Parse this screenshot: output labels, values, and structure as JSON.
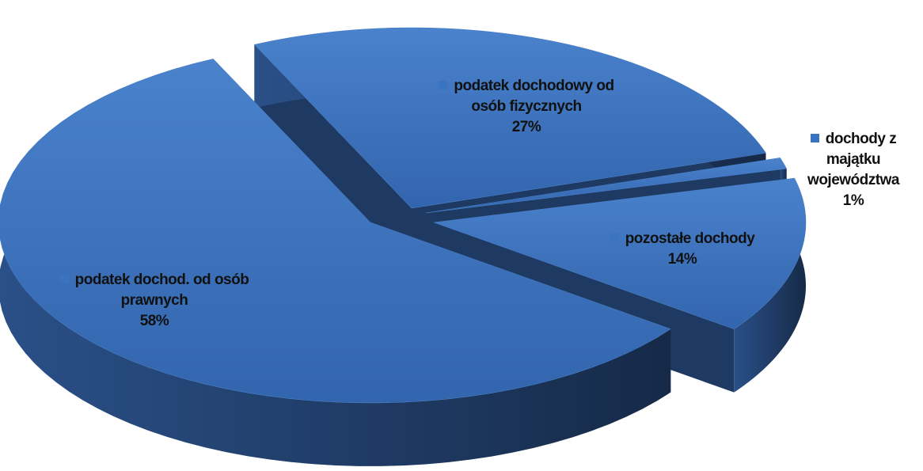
{
  "chart_data": {
    "type": "pie3d",
    "categories": [
      "podatek dochodowy od osób fizycznych",
      "dochody z majątku województwa",
      "pozostałe dochody",
      "podatek dochod. od osób prawnych"
    ],
    "values": [
      27,
      1,
      14,
      58
    ],
    "value_labels": [
      "27%",
      "1%",
      "14%",
      "58%"
    ],
    "color": "#3a73c0"
  }
}
